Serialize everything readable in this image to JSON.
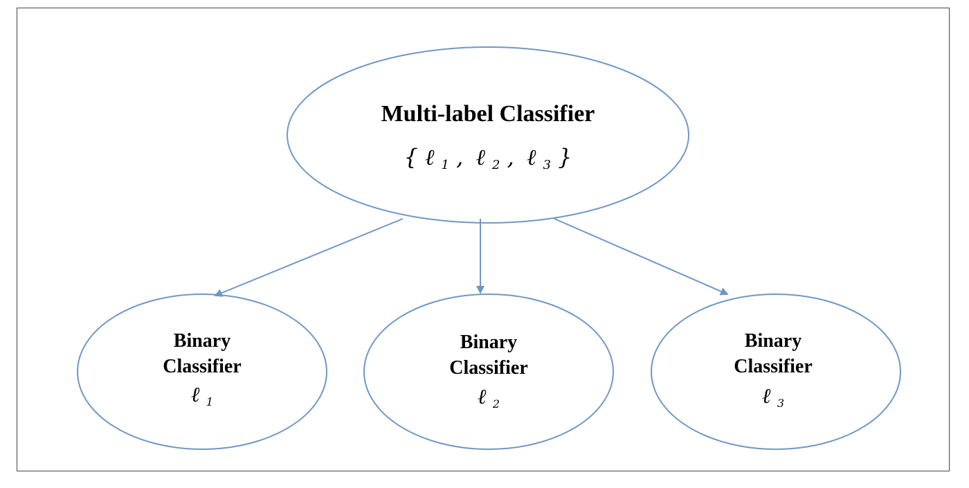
{
  "diagram": {
    "colors": {
      "stroke": "#6f97c6",
      "text": "#000000",
      "border": "#444444"
    },
    "root": {
      "title": "Multi-label Classifier",
      "open_brace": "{",
      "close_brace": "}",
      "separator": ",",
      "labels": [
        {
          "symbol": "ℓ",
          "sub": "1"
        },
        {
          "symbol": "ℓ",
          "sub": "2"
        },
        {
          "symbol": "ℓ",
          "sub": "3"
        }
      ]
    },
    "children": [
      {
        "line1": "Binary",
        "line2": "Classifier",
        "symbol": "ℓ",
        "sub": "1"
      },
      {
        "line1": "Binary",
        "line2": "Classifier",
        "symbol": "ℓ",
        "sub": "2"
      },
      {
        "line1": "Binary",
        "line2": "Classifier",
        "symbol": "ℓ",
        "sub": "3"
      }
    ]
  }
}
